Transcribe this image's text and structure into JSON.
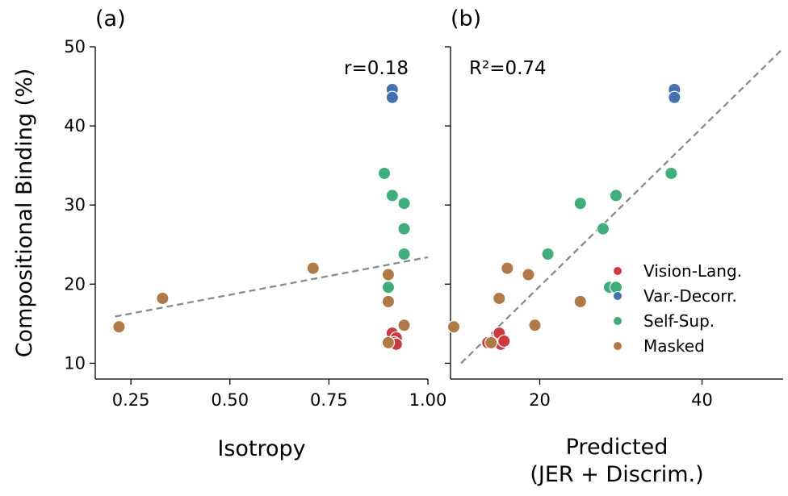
{
  "chart_data": [
    {
      "type": "scatter",
      "panel_label": "(a)",
      "xlabel": "Isotropy",
      "ylabel": "Compositional Binding (%)",
      "xlim": [
        0.16,
        1.0
      ],
      "ylim": [
        8,
        50
      ],
      "xticks": [
        0.25,
        0.5,
        0.75,
        1.0
      ],
      "xtick_labels": [
        "0.25",
        "0.50",
        "0.75",
        "1.00"
      ],
      "yticks": [
        10,
        20,
        30,
        40,
        50
      ],
      "ytick_labels": [
        "10",
        "20",
        "30",
        "40",
        "50"
      ],
      "annotation": "r=0.18",
      "fit_line": [
        [
          0.21,
          15.9
        ],
        [
          1.0,
          23.4
        ]
      ],
      "series": [
        {
          "name": "Vision-Lang.",
          "color": "#cc3b3f",
          "points": [
            [
              0.91,
              13.8
            ],
            [
              0.92,
              13.2
            ],
            [
              0.915,
              12.6
            ],
            [
              0.92,
              12.4
            ]
          ]
        },
        {
          "name": "Var.-Decorr.",
          "color": "#4472b0",
          "points": [
            [
              0.91,
              44.6
            ],
            [
              0.91,
              43.6
            ]
          ]
        },
        {
          "name": "Self-Sup.",
          "color": "#3fae7a",
          "points": [
            [
              0.89,
              34.0
            ],
            [
              0.91,
              31.2
            ],
            [
              0.94,
              30.2
            ],
            [
              0.94,
              27.0
            ],
            [
              0.94,
              23.8
            ],
            [
              0.9,
              19.6
            ]
          ]
        },
        {
          "name": "Masked",
          "color": "#b07a48",
          "points": [
            [
              0.22,
              14.6
            ],
            [
              0.33,
              18.2
            ],
            [
              0.71,
              22.0
            ],
            [
              0.9,
              21.2
            ],
            [
              0.9,
              17.8
            ],
            [
              0.94,
              14.8
            ],
            [
              0.9,
              12.6
            ]
          ]
        }
      ]
    },
    {
      "type": "scatter",
      "panel_label": "(b)",
      "xlabel": [
        "Predicted",
        "(JER + Discrim.)"
      ],
      "ylabel": "",
      "xlim": [
        9,
        50
      ],
      "ylim": [
        8,
        50
      ],
      "xticks": [
        20,
        40
      ],
      "xtick_labels": [
        "20",
        "40"
      ],
      "yticks": [
        10,
        20,
        30,
        40,
        50
      ],
      "annotation": "R²=0.74",
      "fit_line": [
        [
          10.3,
          10.0
        ],
        [
          50,
          49.8
        ]
      ],
      "legend_position": "lower-right",
      "series": [
        {
          "name": "Vision-Lang.",
          "color": "#cc3b3f",
          "points": [
            [
              13.6,
              12.6
            ],
            [
              14.2,
              12.8
            ],
            [
              15.0,
              13.8
            ],
            [
              15.2,
              12.4
            ],
            [
              15.6,
              12.8
            ]
          ]
        },
        {
          "name": "Var.-Decorr.",
          "color": "#4472b0",
          "points": [
            [
              36.6,
              44.6
            ],
            [
              36.6,
              43.6
            ]
          ]
        },
        {
          "name": "Self-Sup.",
          "color": "#3fae7a",
          "points": [
            [
              36.2,
              34.0
            ],
            [
              29.4,
              31.2
            ],
            [
              25.0,
              30.2
            ],
            [
              27.8,
              27.0
            ],
            [
              21.0,
              23.8
            ],
            [
              28.6,
              19.6
            ],
            [
              29.4,
              19.6
            ]
          ]
        },
        {
          "name": "Masked",
          "color": "#b07a48",
          "points": [
            [
              9.4,
              14.6
            ],
            [
              15.0,
              18.2
            ],
            [
              16.0,
              22.0
            ],
            [
              18.6,
              21.2
            ],
            [
              25.0,
              17.8
            ],
            [
              19.4,
              14.8
            ],
            [
              14.0,
              12.6
            ]
          ]
        }
      ]
    }
  ]
}
